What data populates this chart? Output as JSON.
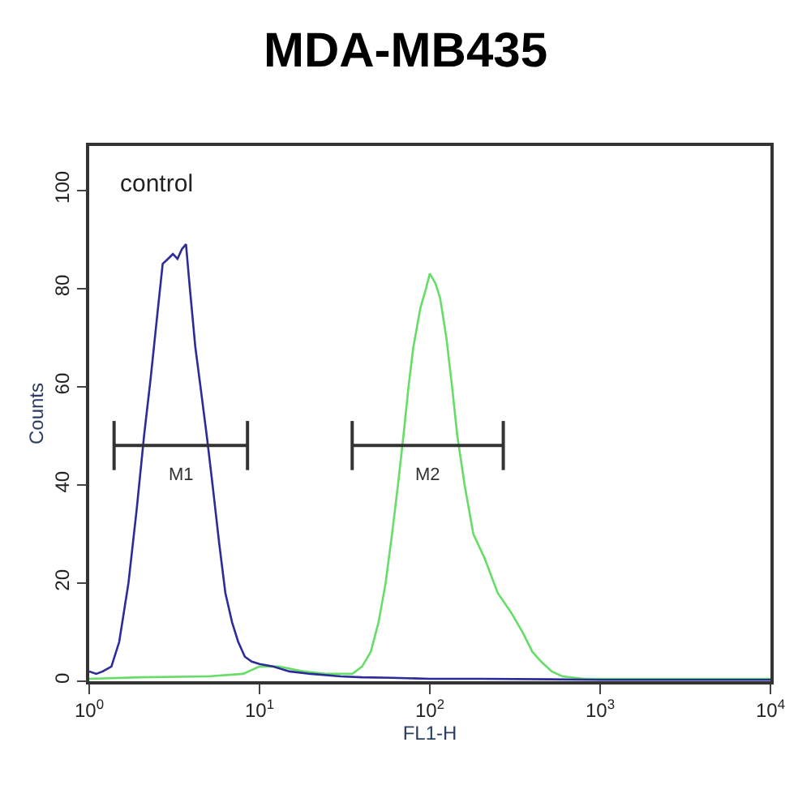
{
  "chart_data": {
    "type": "line",
    "title": "MDA-MB435",
    "xlabel": "FL1-H",
    "ylabel": "Counts",
    "annotations": [
      "control"
    ],
    "log": "x",
    "xlim": [
      1,
      10000
    ],
    "ylim": [
      0,
      109
    ],
    "xticks": [
      {
        "value": 1,
        "label": "10$^{0}$"
      },
      {
        "value": 10,
        "label": "10$^{1}$"
      },
      {
        "value": 100,
        "label": "10$^{2}$"
      },
      {
        "value": 1000,
        "label": "10$^{3}$"
      },
      {
        "value": 10000,
        "label": "10$^{4}$"
      }
    ],
    "yticks": [
      0,
      20,
      40,
      60,
      80,
      100
    ],
    "legend": false,
    "marker": "none",
    "line_style": "solid",
    "series": [
      {
        "color": "#66dd66",
        "x": [
          1,
          2,
          5,
          8,
          10,
          13,
          18,
          25,
          35,
          40,
          45,
          50,
          55,
          60,
          65,
          70,
          75,
          80,
          88,
          95,
          100,
          108,
          115,
          125,
          135,
          145,
          160,
          180,
          210,
          250,
          300,
          350,
          400,
          450,
          520,
          600,
          800,
          2000,
          10000
        ],
        "values": [
          0.5,
          0.8,
          1,
          1.5,
          3,
          3,
          2,
          1.5,
          1.5,
          3,
          6,
          12,
          20,
          30,
          40,
          50,
          60,
          68,
          76,
          80,
          83,
          81,
          78,
          70,
          60,
          50,
          40,
          30,
          25,
          18,
          14,
          10,
          6,
          4,
          2,
          1,
          0.5,
          0.5,
          0.5
        ]
      },
      {
        "color": "#2b2b9a",
        "x": [
          1,
          1.1,
          1.2,
          1.35,
          1.5,
          1.7,
          1.9,
          2.1,
          2.3,
          2.5,
          2.7,
          2.9,
          3.1,
          3.3,
          3.5,
          3.7,
          3.9,
          4.2,
          4.5,
          4.9,
          5.3,
          5.8,
          6.3,
          6.9,
          7.5,
          8.2,
          9,
          10,
          12,
          15,
          20,
          30,
          40,
          60,
          100,
          200,
          500,
          1000,
          3000,
          10000
        ],
        "values": [
          2,
          1.5,
          2,
          3,
          8,
          20,
          35,
          50,
          62,
          74,
          85,
          86,
          87,
          86,
          88,
          89,
          80,
          68,
          60,
          50,
          40,
          28,
          18,
          12,
          8,
          5,
          4,
          3.5,
          3,
          2,
          1.5,
          1,
          0.8,
          0.7,
          0.5,
          0.5,
          0.4,
          0.3,
          0.3,
          0.3
        ]
      },
      {
        "name": "M1",
        "color": "#333333",
        "x": [
          1.4,
          8.5
        ],
        "values": [
          48,
          48
        ],
        "errors": [
          5,
          5
        ]
      },
      {
        "name": "M2",
        "color": "#333333",
        "x": [
          35,
          270
        ],
        "values": [
          48,
          48
        ],
        "errors": [
          5,
          5
        ]
      }
    ]
  }
}
